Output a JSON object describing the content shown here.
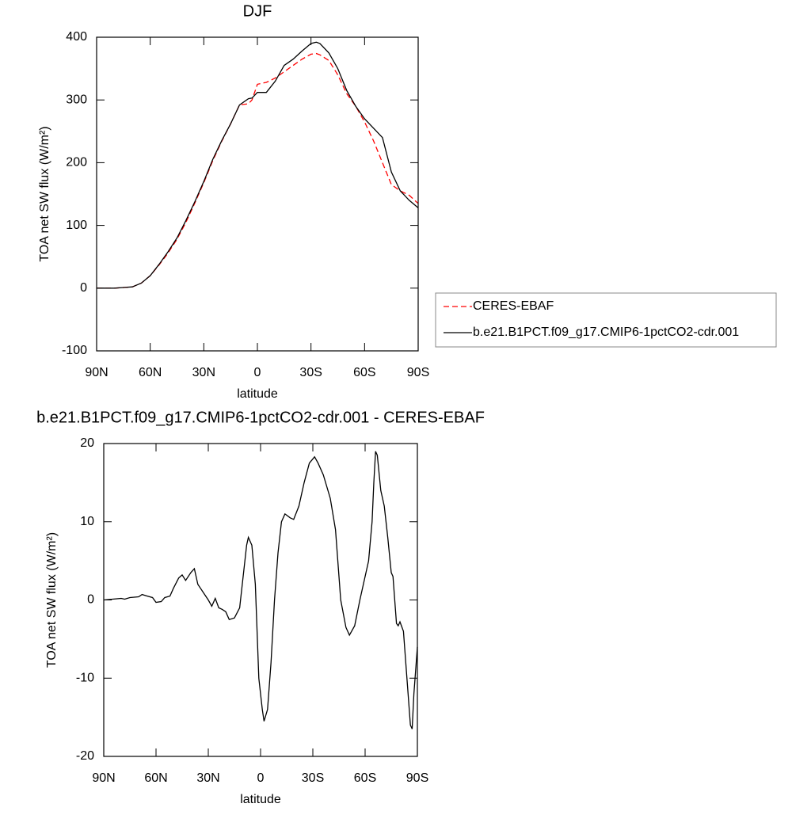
{
  "chart_data": [
    {
      "type": "line",
      "title": "DJF",
      "xlabel": "latitude",
      "ylabel": "TOA net SW flux (W/m²)",
      "x": [
        90,
        85,
        80,
        75,
        70,
        65,
        60,
        55,
        50,
        45,
        40,
        35,
        30,
        25,
        20,
        15,
        10,
        5,
        3,
        0,
        -5,
        -10,
        -15,
        -20,
        -25,
        -30,
        -33,
        -35,
        -40,
        -45,
        -50,
        -55,
        -60,
        -65,
        -70,
        -75,
        -80,
        -85,
        -90
      ],
      "series": [
        {
          "name": "CERES-EBAF",
          "color": "#ff0000",
          "dash": true,
          "values": [
            0,
            0,
            0,
            1,
            2,
            8,
            20,
            37,
            56,
            78,
            105,
            136,
            168,
            203,
            234,
            262,
            292,
            294,
            300,
            325,
            328,
            335,
            345,
            355,
            365,
            373,
            374,
            372,
            363,
            340,
            310,
            290,
            265,
            235,
            200,
            165,
            155,
            148,
            135
          ]
        },
        {
          "name": "b.e21.B1PCT.f09_g17.CMIP6-1pctCO2-cdr.001",
          "color": "#000000",
          "dash": false,
          "values": [
            0,
            0,
            0,
            1,
            2,
            8,
            20,
            38,
            58,
            80,
            108,
            138,
            170,
            205,
            235,
            262,
            292,
            302,
            303,
            312,
            312,
            330,
            355,
            365,
            378,
            390,
            392,
            390,
            375,
            350,
            315,
            290,
            270,
            255,
            240,
            185,
            155,
            140,
            128
          ]
        }
      ],
      "xlim": [
        90,
        -90
      ],
      "xticks": [
        {
          "value": 90,
          "label": "90N"
        },
        {
          "value": 60,
          "label": "60N"
        },
        {
          "value": 30,
          "label": "30N"
        },
        0,
        {
          "value": -30,
          "label": "30S"
        },
        {
          "value": -60,
          "label": "60S"
        },
        {
          "value": -90,
          "label": "90S"
        }
      ],
      "ylim": [
        -100,
        400
      ],
      "yticks": [
        -100,
        0,
        100,
        200,
        300,
        400
      ]
    },
    {
      "type": "line",
      "title": "b.e21.B1PCT.f09_g17.CMIP6-1pctCO2-cdr.001 - CERES-EBAF",
      "xlabel": "latitude",
      "ylabel": "TOA net SW flux (W/m²)",
      "x": [
        90,
        85,
        80,
        78,
        75,
        70,
        68,
        65,
        62,
        60,
        57,
        55,
        52,
        50,
        47,
        45,
        43,
        40,
        38,
        36,
        33,
        30,
        28,
        26,
        24,
        22,
        20,
        18,
        15,
        12,
        10,
        8,
        7,
        5,
        3,
        1,
        -1,
        -2,
        -4,
        -6,
        -8,
        -10,
        -12,
        -14,
        -17,
        -19,
        -22,
        -25,
        -28,
        -31,
        -33,
        -36,
        -40,
        -43,
        -46,
        -49,
        -51,
        -54,
        -57,
        -60,
        -62,
        -64,
        -65,
        -66,
        -67,
        -69,
        -71,
        -73,
        -75,
        -76,
        -78,
        -79,
        -80,
        -82,
        -84,
        -86,
        -87,
        -88,
        -90
      ],
      "series": [
        {
          "color": "#000000",
          "values": [
            0,
            0.1,
            0.2,
            0.1,
            0.3,
            0.4,
            0.7,
            0.5,
            0.3,
            -0.3,
            -0.2,
            0.3,
            0.5,
            1.5,
            2.8,
            3.2,
            2.5,
            3.5,
            4.0,
            2.0,
            1.0,
            0,
            -0.8,
            0.2,
            -1.0,
            -1.2,
            -1.5,
            -2.5,
            -2.3,
            -1.0,
            3,
            7,
            8,
            7,
            2,
            -10,
            -14,
            -15.5,
            -14,
            -8,
            0,
            6,
            10,
            11,
            10.5,
            10.3,
            12,
            15,
            17.5,
            18.3,
            17.5,
            16,
            13,
            9,
            0,
            -3.5,
            -4.5,
            -3.3,
            0,
            3,
            5,
            10,
            15,
            19,
            18.5,
            14,
            12,
            8,
            3.5,
            3,
            -3,
            -3.3,
            -2.8,
            -4,
            -10,
            -16,
            -16.5,
            -12,
            -6
          ]
        }
      ],
      "xlim": [
        90,
        -90
      ],
      "xticks": [
        {
          "value": 90,
          "label": "90N"
        },
        {
          "value": 60,
          "label": "60N"
        },
        {
          "value": 30,
          "label": "30N"
        },
        0,
        {
          "value": -30,
          "label": "30S"
        },
        {
          "value": -60,
          "label": "60S"
        },
        {
          "value": -90,
          "label": "90S"
        }
      ],
      "ylim": [
        -20,
        20
      ],
      "yticks": [
        -20,
        -10,
        0,
        10,
        20
      ]
    }
  ]
}
